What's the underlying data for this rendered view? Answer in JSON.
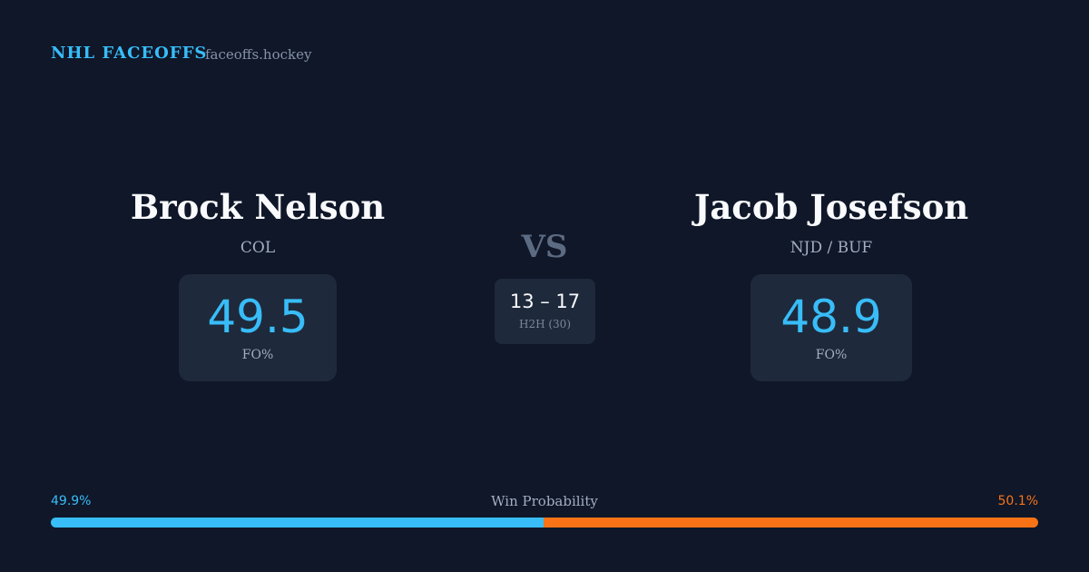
{
  "brand": {
    "title": "NHL FACEOFFS",
    "site": "faceoffs.hockey"
  },
  "players": [
    {
      "name": "Brock Nelson",
      "team": "COL",
      "value": 49.5,
      "metric": "FO%"
    },
    {
      "name": "Jacob Josefson",
      "team": "NJD / BUF",
      "value": 48.9,
      "metric": "FO%"
    }
  ],
  "versus": "VS",
  "h2h": {
    "score": "13 – 17",
    "label": "H2H (30)"
  },
  "win_probability": {
    "title": "Win Probability",
    "left": {
      "value": 49.9,
      "label": "49.9%",
      "color": "#38bdf8"
    },
    "right": {
      "value": 50.1,
      "label": "50.1%",
      "color": "#f97316"
    }
  }
}
